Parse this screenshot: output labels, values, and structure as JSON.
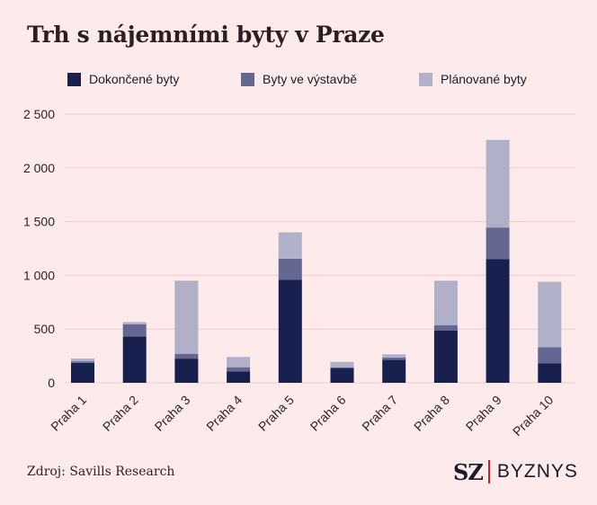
{
  "chart_data": {
    "type": "bar",
    "stacked": true,
    "title": "Trh s nájemními byty v Praze",
    "categories": [
      "Praha 1",
      "Praha 2",
      "Praha 3",
      "Praha 4",
      "Praha 5",
      "Praha 6",
      "Praha 7",
      "Praha 8",
      "Praha 9",
      "Praha 10"
    ],
    "series": [
      {
        "name": "Dokončené byty",
        "color": "#18204f",
        "values": [
          185,
          430,
          225,
          105,
          960,
          140,
          215,
          485,
          1150,
          180
        ]
      },
      {
        "name": "Byty ve výstavbě",
        "color": "#636792",
        "values": [
          15,
          115,
          45,
          40,
          195,
          0,
          20,
          50,
          295,
          150
        ]
      },
      {
        "name": "Plánované byty",
        "color": "#b0b0c8",
        "values": [
          25,
          20,
          680,
          95,
          245,
          55,
          30,
          415,
          815,
          610
        ]
      }
    ],
    "yticks": [
      0,
      500,
      1000,
      1500,
      2000,
      2500
    ],
    "ytick_labels": [
      "0",
      "500",
      "1 000",
      "1 500",
      "2 000",
      "2 500"
    ],
    "ylim": [
      0,
      2500
    ],
    "grid": true,
    "legend_position": "top"
  },
  "footer": {
    "source": "Zdroj: Savills Research",
    "logo_left": "SZ",
    "logo_right": "BYZNYS"
  },
  "colors": {
    "background": "#fdebec",
    "grid": "#e6cfd2",
    "accent": "#c8202f"
  }
}
